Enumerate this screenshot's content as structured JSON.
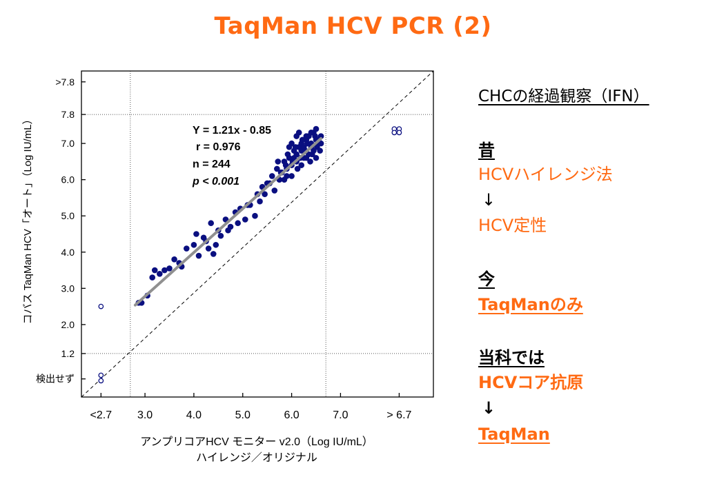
{
  "title": "TaqMan HCV PCR (2)",
  "colors": {
    "accent": "#ff6a13",
    "points": "#0a0f80",
    "regression": "#909090"
  },
  "chart_data": {
    "type": "scatter",
    "xlabel_line1": "アンプリコアHCV モニター v2.0（Log IU/mL）",
    "xlabel_line2": "ハイレンジ／オリジナル",
    "ylabel": "コバス TaqMan HCV「オート」（Log IU/mL）",
    "x_tick_labels": [
      {
        "label": "<2.7",
        "x": 2.1
      },
      {
        "label": "3.0",
        "x": 3.0
      },
      {
        "label": "4.0",
        "x": 4.0
      },
      {
        "label": "5.0",
        "x": 5.0
      },
      {
        "label": "6.0",
        "x": 6.0
      },
      {
        "label": "7.0",
        "x": 7.0
      },
      {
        "label": "> 6.7",
        "x": 8.2
      }
    ],
    "y_tick_labels": [
      {
        "label": ">7.8",
        "y": 8.7
      },
      {
        "label": "7.8",
        "y": 7.8
      },
      {
        "label": "7.0",
        "y": 7.0
      },
      {
        "label": "6.0",
        "y": 6.0
      },
      {
        "label": "5.0",
        "y": 5.0
      },
      {
        "label": "4.0",
        "y": 4.0
      },
      {
        "label": "3.0",
        "y": 3.0
      },
      {
        "label": "2.0",
        "y": 2.0
      },
      {
        "label": "1.2",
        "y": 1.2
      },
      {
        "label": "検出せず",
        "y": 0.5
      }
    ],
    "xlim": [
      1.7,
      8.9
    ],
    "ylim": [
      0.0,
      9.0
    ],
    "reference_lines": {
      "x": [
        2.7,
        6.7
      ],
      "y": [
        1.2,
        7.8
      ]
    },
    "identity_line": true,
    "regression": {
      "slope": 1.21,
      "intercept": -0.85,
      "x_range": [
        2.8,
        6.6
      ]
    },
    "stats": {
      "equation": "Y = 1.21x - 0.85",
      "r": "r = 0.976",
      "n": "n = 244",
      "p": "p < 0.001"
    },
    "series": [
      {
        "marker": "filled-circle",
        "x": [
          2.87,
          2.93,
          3.05,
          3.15,
          3.2,
          3.3,
          3.4,
          3.5,
          3.7,
          3.75,
          3.85,
          4.0,
          4.05,
          4.1,
          4.2,
          4.3,
          4.35,
          4.4,
          4.5,
          4.55,
          4.65,
          4.75,
          4.85,
          4.95,
          5.05,
          5.15,
          5.25,
          5.35,
          5.4,
          5.45,
          5.55,
          5.6,
          5.65,
          5.7,
          5.75,
          5.8,
          5.85,
          5.9,
          5.95,
          6.0,
          6.05,
          6.1,
          6.15,
          6.2,
          6.25,
          6.3,
          6.35,
          6.4,
          6.45,
          6.5,
          6.55,
          6.6,
          5.72,
          5.78,
          5.88,
          5.92,
          6.02,
          6.08,
          6.12,
          6.18,
          6.22,
          6.28,
          6.32,
          6.38,
          6.42,
          6.48,
          6.52,
          6.58,
          6.0,
          6.1,
          6.2,
          6.3,
          6.4,
          6.5,
          5.95,
          6.05,
          6.15,
          6.25,
          6.35,
          6.45,
          6.55,
          5.85,
          5.9,
          6.0,
          6.1,
          6.2,
          6.3,
          6.4,
          6.5,
          6.6,
          3.6,
          4.25,
          4.45,
          4.7,
          4.9,
          5.1,
          5.3,
          5.5
        ],
        "y": [
          2.6,
          2.6,
          2.8,
          3.3,
          3.5,
          3.4,
          3.5,
          3.55,
          3.7,
          3.6,
          4.1,
          4.2,
          4.5,
          3.9,
          4.4,
          4.1,
          4.8,
          3.95,
          4.6,
          4.45,
          4.9,
          4.7,
          5.1,
          5.2,
          4.9,
          5.3,
          5.0,
          5.4,
          5.8,
          5.6,
          5.9,
          6.1,
          5.7,
          6.3,
          6.0,
          6.2,
          6.5,
          6.1,
          6.6,
          6.4,
          6.8,
          6.7,
          6.9,
          7.0,
          6.6,
          7.1,
          7.2,
          6.9,
          7.3,
          7.4,
          7.0,
          7.2,
          6.5,
          6.2,
          6.4,
          6.7,
          6.5,
          6.9,
          6.3,
          6.6,
          7.1,
          6.8,
          7.0,
          6.5,
          6.7,
          7.2,
          6.9,
          6.8,
          7.0,
          7.2,
          6.8,
          6.6,
          7.3,
          7.1,
          6.9,
          6.6,
          7.3,
          6.9,
          6.7,
          6.8,
          7.1,
          6.0,
          6.3,
          6.1,
          6.5,
          6.4,
          7.2,
          7.0,
          6.6,
          7.0,
          3.8,
          4.3,
          4.2,
          4.6,
          4.8,
          5.3,
          5.6,
          5.9
        ]
      },
      {
        "marker": "open-circle",
        "x": [
          2.1,
          2.1,
          2.1,
          8.1,
          8.2,
          8.1,
          8.2
        ],
        "y": [
          2.5,
          0.6,
          0.45,
          7.4,
          7.4,
          7.3,
          7.3
        ]
      }
    ]
  },
  "side_panel": {
    "heading": "CHCの経過観察（IFN）",
    "past_label": "昔",
    "past_method1": "HCVハイレンジ法",
    "arrow1": "↓",
    "past_method2": "HCV定性",
    "now_label": "今",
    "now_method": "TaqManのみ",
    "dept_label": "当科では",
    "dept_method1": "HCVコア抗原",
    "arrow2": "↓",
    "dept_method2": "TaqMan"
  }
}
